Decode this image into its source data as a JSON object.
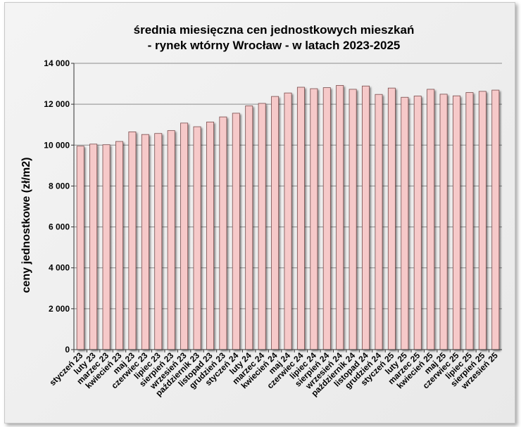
{
  "chart_data": {
    "type": "bar",
    "title_lines": [
      "średnia miesięczna cen jednostkowych mieszkań",
      "- rynek wtórny Wrocław - w latach 2023-2025"
    ],
    "xlabel": "",
    "ylabel": "ceny jednostkowe (zł/m2)",
    "ylim": [
      0,
      14000
    ],
    "yticks": [
      0,
      2000,
      4000,
      6000,
      8000,
      10000,
      12000,
      14000
    ],
    "ytick_labels": [
      "0",
      "2 000",
      "4 000",
      "6 000",
      "8 000",
      "10 000",
      "12 000",
      "14 000"
    ],
    "grid": true,
    "categories": [
      "styczeń 23",
      "luty 23",
      "marzec 23",
      "kwiecień 23",
      "maj 23",
      "czerwiec 23",
      "lipiec 23",
      "sierpień 23",
      "wrzesień 23",
      "październik 23",
      "listopad 23",
      "grudzień 23",
      "styczeń 24",
      "luty 24",
      "marzec 24",
      "kwiecień 24",
      "maj 24",
      "czerwiec 24",
      "lipiec 24",
      "sierpień 24",
      "wrzesień 24",
      "październik 24",
      "listopad 24",
      "grudzień 24",
      "styczeń 25",
      "luty 25",
      "marzec 25",
      "kwiecień 25",
      "maj 25",
      "czerwiec 25",
      "lipiec 25",
      "sierpień 25",
      "wrzesień 25"
    ],
    "values": [
      9950,
      10050,
      10020,
      10180,
      10650,
      10520,
      10570,
      10710,
      11080,
      10900,
      11130,
      11380,
      11560,
      11920,
      12040,
      12380,
      12550,
      12830,
      12760,
      12810,
      12920,
      12730,
      12890,
      12480,
      12790,
      12340,
      12400,
      12730,
      12490,
      12410,
      12570,
      12630,
      12690
    ],
    "bar_color": "#f6c9c9",
    "bar_edge_color": "#7a4d4d"
  }
}
